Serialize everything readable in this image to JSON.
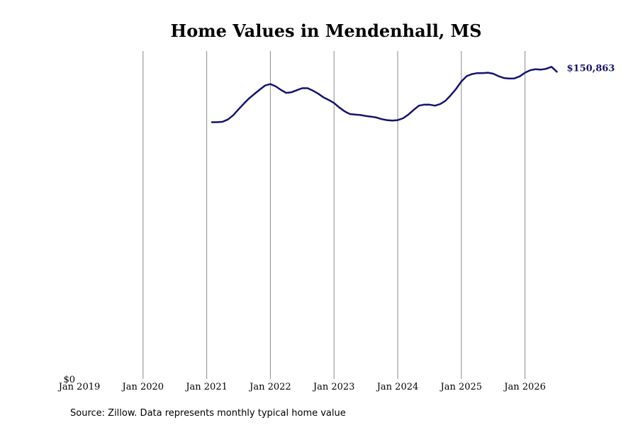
{
  "chart_data": {
    "type": "line",
    "title": "Home Values in Mendenhall, MS",
    "xlabel": "",
    "ylabel": "",
    "x_ticks": [
      "Jan 2019",
      "Jan 2020",
      "Jan 2021",
      "Jan 2022",
      "Jan 2023",
      "Jan 2024",
      "Jan 2025",
      "Jan 2026"
    ],
    "y_ticks": [
      "$0"
    ],
    "ylim": [
      0,
      160000
    ],
    "xlim": [
      "2019-01",
      "2026-08"
    ],
    "grid": "vertical lines at each January",
    "last_value_label": "$150,863",
    "line_color": "#14146b",
    "series": [
      {
        "x": [
          "2021-02",
          "2021-03",
          "2021-04",
          "2021-05",
          "2021-06",
          "2021-07",
          "2021-08",
          "2021-09",
          "2021-10",
          "2021-11",
          "2021-12",
          "2022-01",
          "2022-02",
          "2022-03",
          "2022-04",
          "2022-05",
          "2022-06",
          "2022-07",
          "2022-08",
          "2022-09",
          "2022-10",
          "2022-11",
          "2022-12",
          "2023-01",
          "2023-02",
          "2023-03",
          "2023-04",
          "2023-05",
          "2023-06",
          "2023-07",
          "2023-08",
          "2023-09",
          "2023-10",
          "2023-11",
          "2023-12",
          "2024-01",
          "2024-02",
          "2024-03",
          "2024-04",
          "2024-05",
          "2024-06",
          "2024-07",
          "2024-08",
          "2024-09",
          "2024-10",
          "2024-11",
          "2024-12",
          "2025-01",
          "2025-02",
          "2025-03",
          "2025-04",
          "2025-05",
          "2025-06",
          "2025-07",
          "2025-08",
          "2025-09",
          "2025-10",
          "2025-11",
          "2025-12",
          "2026-01",
          "2026-02",
          "2026-03",
          "2026-04",
          "2026-05",
          "2026-06",
          "2026-07"
        ],
        "values": [
          126100,
          126100,
          126300,
          127400,
          129500,
          132400,
          135200,
          137800,
          140000,
          142100,
          144100,
          144800,
          143700,
          141900,
          140500,
          140800,
          141800,
          142800,
          142800,
          141600,
          140100,
          138300,
          137000,
          135500,
          133300,
          131400,
          130100,
          129800,
          129600,
          129100,
          128800,
          128400,
          127600,
          127100,
          126900,
          127100,
          128000,
          129800,
          132100,
          134200,
          134700,
          134700,
          134200,
          135000,
          136600,
          139300,
          142400,
          146100,
          148700,
          149700,
          150200,
          150200,
          150400,
          149900,
          148700,
          147800,
          147500,
          147600,
          148600,
          150400,
          151600,
          152100,
          151900,
          152300,
          153300,
          150863
        ]
      }
    ]
  },
  "footer": {
    "source": "Source: Zillow. Data represents monthly typical home value"
  }
}
